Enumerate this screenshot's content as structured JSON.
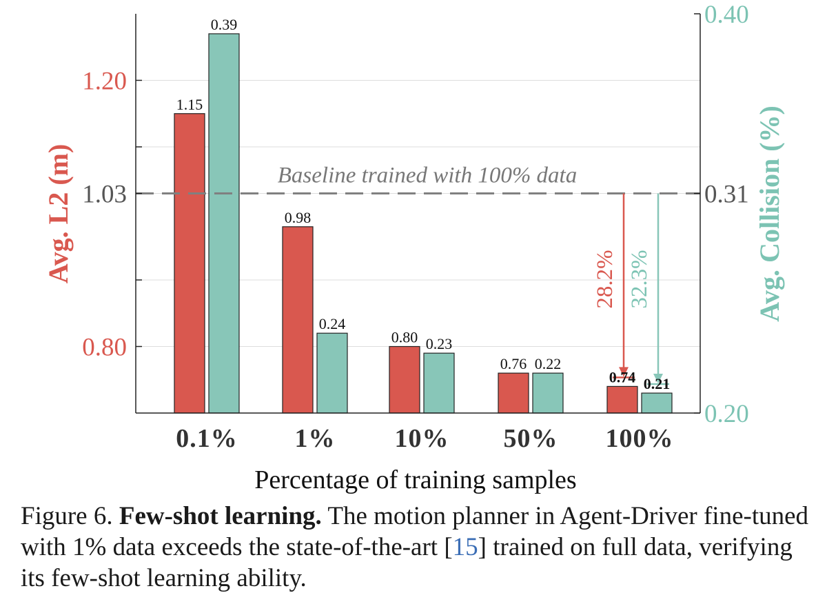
{
  "colors": {
    "l2": "#d9584f",
    "collision": "#88c6b8",
    "baseline": "#808080",
    "l2_text": "#d9584f",
    "collision_text": "#7cc3b3",
    "ref": "#3a6db5"
  },
  "chart_data": {
    "type": "bar",
    "xlabel": "Percentage of training samples",
    "categories": [
      "0.1%",
      "1%",
      "10%",
      "50%",
      "100%"
    ],
    "series": [
      {
        "name": "Avg. L2 (m)",
        "axis": "left",
        "values": [
          1.15,
          0.98,
          0.8,
          0.76,
          0.74
        ],
        "labels": [
          "1.15",
          "0.98",
          "0.80",
          "0.76",
          "0.74"
        ],
        "bold_last": true
      },
      {
        "name": "Avg. Collision (%)",
        "axis": "right",
        "values": [
          0.39,
          0.24,
          0.23,
          0.22,
          0.21
        ],
        "labels": [
          "0.39",
          "0.24",
          "0.23",
          "0.22",
          "0.21"
        ],
        "bold_last": true
      }
    ],
    "left_axis": {
      "label": "Avg. L2 (m)",
      "ylim": [
        0.7,
        1.3
      ],
      "ticks": [
        0.8,
        1.03,
        1.2
      ],
      "tick_labels": [
        "0.80",
        "1.03",
        "1.20"
      ],
      "minor_ticks": [
        0.9,
        1.1
      ]
    },
    "right_axis": {
      "label": "Avg. Collision (%)",
      "ylim": [
        0.2,
        0.4
      ],
      "ticks": [
        0.2,
        0.31,
        0.4
      ],
      "tick_labels": [
        "0.20",
        "0.31",
        "0.40"
      ]
    },
    "baseline": {
      "label": "Baseline trained with 100% data",
      "l2": 1.03,
      "collision": 0.31
    },
    "annotations": [
      {
        "text": "28.2%",
        "series": 0,
        "from": 1.03,
        "to": 0.74
      },
      {
        "text": "32.3%",
        "series": 1,
        "from": 0.31,
        "to": 0.21
      }
    ],
    "grid": true
  },
  "caption": {
    "prefix": "Figure 6. ",
    "title": "Few-shot learning.",
    "body1": " The motion planner in Agent-Driver fine-tuned with 1% data exceeds the state-of-the-art [",
    "ref": "15",
    "body2": "] trained on full data, verifying its few-shot learning ability."
  }
}
